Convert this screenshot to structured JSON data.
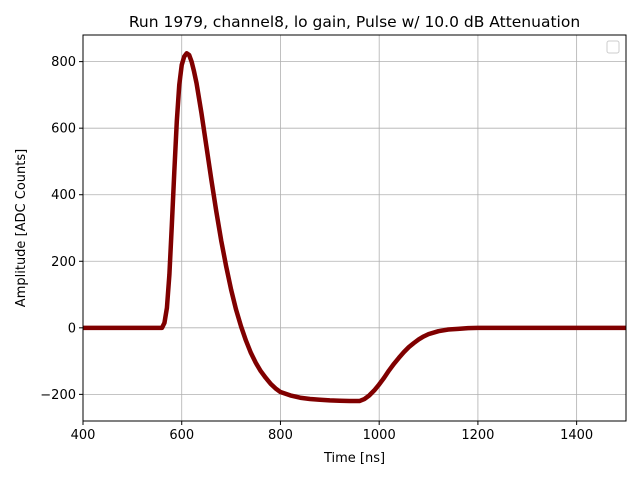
{
  "chart_data": {
    "type": "line",
    "title": "Run 1979, channel8, lo gain, Pulse w/ 10.0 dB Attenuation",
    "xlabel": "Time [ns]",
    "ylabel": "Amplitude [ADC Counts]",
    "xlim": [
      400,
      1500
    ],
    "ylim": [
      -280,
      880
    ],
    "xticks": [
      400,
      600,
      800,
      1000,
      1200,
      1400
    ],
    "yticks": [
      -200,
      0,
      200,
      400,
      600,
      800
    ],
    "xtick_labels": [
      "400",
      "600",
      "800",
      "1000",
      "1200",
      "1400"
    ],
    "ytick_labels": [
      "−200",
      "0",
      "200",
      "400",
      "600",
      "800"
    ],
    "grid": true,
    "legend": {
      "placement": "upper right",
      "entries": []
    },
    "series": [
      {
        "color": "#800000",
        "x": [
          400,
          560,
          565,
          570,
          575,
          580,
          585,
          590,
          595,
          600,
          605,
          610,
          615,
          620,
          625,
          630,
          640,
          650,
          660,
          670,
          680,
          690,
          700,
          710,
          720,
          730,
          740,
          750,
          760,
          770,
          780,
          790,
          800,
          820,
          840,
          860,
          880,
          900,
          920,
          940,
          960,
          970,
          980,
          990,
          1000,
          1010,
          1020,
          1030,
          1040,
          1050,
          1060,
          1070,
          1080,
          1090,
          1100,
          1120,
          1140,
          1160,
          1180,
          1200,
          1250,
          1300,
          1400,
          1500
        ],
        "y": [
          0,
          0,
          15,
          60,
          160,
          310,
          470,
          620,
          730,
          790,
          815,
          825,
          820,
          800,
          770,
          735,
          645,
          545,
          445,
          350,
          262,
          185,
          115,
          55,
          5,
          -38,
          -75,
          -105,
          -130,
          -150,
          -168,
          -182,
          -193,
          -203,
          -210,
          -214,
          -216,
          -218,
          -219,
          -220,
          -220,
          -214,
          -203,
          -188,
          -170,
          -150,
          -128,
          -108,
          -90,
          -73,
          -58,
          -46,
          -35,
          -26,
          -19,
          -10,
          -5,
          -3,
          -1,
          0,
          0,
          0,
          0,
          0
        ]
      }
    ]
  }
}
